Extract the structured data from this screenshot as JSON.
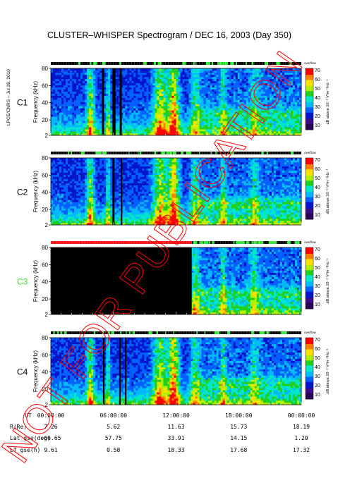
{
  "header": {
    "title": "CLUSTER–WHISPER Spectrogram / DEC 16, 2003 (Day 350)",
    "credit": "LPCE/CNRS – Jul 28, 2010"
  },
  "watermark": {
    "text": "NOT FOR PUBLICATION",
    "color": "#ff0000"
  },
  "colors": {
    "scale": [
      "#2b0057",
      "#3a0a88",
      "#0016c8",
      "#0060ff",
      "#00b8ff",
      "#00e6c8",
      "#20d020",
      "#b0f000",
      "#ffe000",
      "#ff8000",
      "#ff0000"
    ],
    "strip_black": "#000000",
    "strip_green": "#33e633",
    "strip_red": "#ff1111",
    "c3_label": "#33e633"
  },
  "chart_data": [
    {
      "type": "heatmap",
      "panel": "C1",
      "ylabel": "Frequency (kHz)",
      "yticks": [
        2,
        20,
        40,
        60,
        80
      ],
      "ylim": [
        2,
        80
      ],
      "colorbar_label": "dB above 10⁻⁸ V²m⁻²Hz⁻¹",
      "colorbar_ticks": [
        10,
        20,
        30,
        40,
        50,
        60,
        70
      ],
      "colorbar_top_label": "overflow",
      "no_data_intervals_h": [
        [
          4.9,
          5.1
        ],
        [
          5.9,
          6.2
        ],
        [
          6.6,
          6.8
        ]
      ]
    },
    {
      "type": "heatmap",
      "panel": "C2",
      "ylabel": "Frequency (kHz)",
      "yticks": [
        2,
        20,
        40,
        60,
        80
      ],
      "ylim": [
        2,
        80
      ],
      "colorbar_label": "dB above 10⁻⁸ V²m⁻²Hz⁻¹",
      "colorbar_ticks": [
        10,
        20,
        30,
        40,
        50,
        60,
        70
      ],
      "colorbar_top_label": "overflow",
      "no_data_intervals_h": [
        [
          5.9,
          6.1
        ],
        [
          6.7,
          6.85
        ]
      ]
    },
    {
      "type": "heatmap",
      "panel": "C3",
      "ylabel": "Frequency (kHz)",
      "yticks": [
        2,
        20,
        40,
        60,
        80
      ],
      "ylim": [
        2,
        80
      ],
      "colorbar_label": "dB above 10⁻⁸ V²m⁻²Hz⁻¹",
      "colorbar_ticks": [
        10,
        20,
        30,
        40,
        50,
        60,
        70
      ],
      "colorbar_top_label": "overflow",
      "no_data_intervals_h": [
        [
          0,
          13.5
        ]
      ]
    },
    {
      "type": "heatmap",
      "panel": "C4",
      "ylabel": "Frequency (kHz)",
      "yticks": [
        2,
        20,
        40,
        60,
        80
      ],
      "ylim": [
        2,
        80
      ],
      "colorbar_label": "dB above 10⁻⁸ V²m⁻²Hz⁻¹",
      "colorbar_ticks": [
        10,
        20,
        30,
        40,
        50,
        60,
        70
      ],
      "colorbar_top_label": "overflow",
      "no_data_intervals_h": [
        [
          5.0,
          5.15
        ],
        [
          6.55,
          6.7
        ],
        [
          7.1,
          7.25
        ]
      ]
    }
  ],
  "xaxis": {
    "range_h": [
      0,
      24
    ],
    "rows": [
      {
        "label": "UT",
        "values": [
          "00:00:00",
          "06:00:00",
          "12:00:00",
          "18:00:00",
          "00:00:00"
        ]
      },
      {
        "label": "R(Re)",
        "values": [
          "7.26",
          "5.62",
          "11.63",
          "15.73",
          "18.19"
        ]
      },
      {
        "label": "Lat_gse(deg)",
        "values": [
          "-66.65",
          "57.75",
          "33.91",
          "14.15",
          "1.20"
        ]
      },
      {
        "label": "LT_gse(h)",
        "values": [
          "9.61",
          "0.58",
          "18.33",
          "17.68",
          "17.32"
        ]
      }
    ]
  }
}
